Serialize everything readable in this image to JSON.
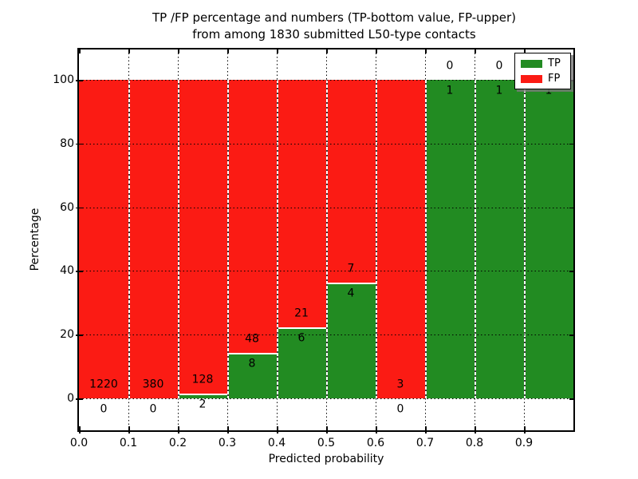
{
  "title": {
    "line1": "TP /FP percentage and numbers (TP-bottom value, FP-upper)",
    "line2": "from among 1830 submitted L50-type contacts"
  },
  "chart_data": {
    "type": "bar",
    "stacked": true,
    "normalized_to_percent": true,
    "title": "TP /FP percentage and numbers (TP-bottom value, FP-upper)\nfrom among 1830 submitted L50-type contacts",
    "xlabel": "Predicted probability",
    "ylabel": "Percentage",
    "total_contacts": 1830,
    "bin_width": 0.1,
    "categories": [
      "0.0-0.1",
      "0.1-0.2",
      "0.2-0.3",
      "0.3-0.4",
      "0.4-0.5",
      "0.5-0.6",
      "0.6-0.7",
      "0.7-0.8",
      "0.8-0.9",
      "0.9-1.0"
    ],
    "x_tick_labels": [
      "0.0",
      "0.1",
      "0.2",
      "0.3",
      "0.4",
      "0.5",
      "0.6",
      "0.7",
      "0.8",
      "0.9"
    ],
    "y_ticks": [
      0,
      20,
      40,
      60,
      80,
      100
    ],
    "xlim": [
      0.0,
      1.0
    ],
    "ylim": [
      -10.5,
      109.5
    ],
    "grid": true,
    "series": [
      {
        "name": "TP",
        "color": "#228b22",
        "counts": [
          0,
          0,
          2,
          8,
          6,
          4,
          0,
          1,
          1,
          1
        ]
      },
      {
        "name": "FP",
        "color": "#fb1b14",
        "counts": [
          1220,
          380,
          128,
          48,
          21,
          7,
          3,
          0,
          0,
          0
        ]
      }
    ],
    "annotations": {
      "scheme": "FP count printed above the TP/FP boundary, TP count printed below it",
      "fp_labels": [
        "1220",
        "380",
        "128",
        "48",
        "21",
        "7",
        "3",
        "0",
        "0",
        "0"
      ],
      "tp_labels": [
        "0",
        "0",
        "2",
        "8",
        "6",
        "4",
        "0",
        "1",
        "1",
        "1"
      ]
    },
    "legend": {
      "position": "upper right",
      "entries": [
        {
          "label": "TP",
          "color": "#228b22"
        },
        {
          "label": "FP",
          "color": "#fb1b14"
        }
      ]
    }
  }
}
